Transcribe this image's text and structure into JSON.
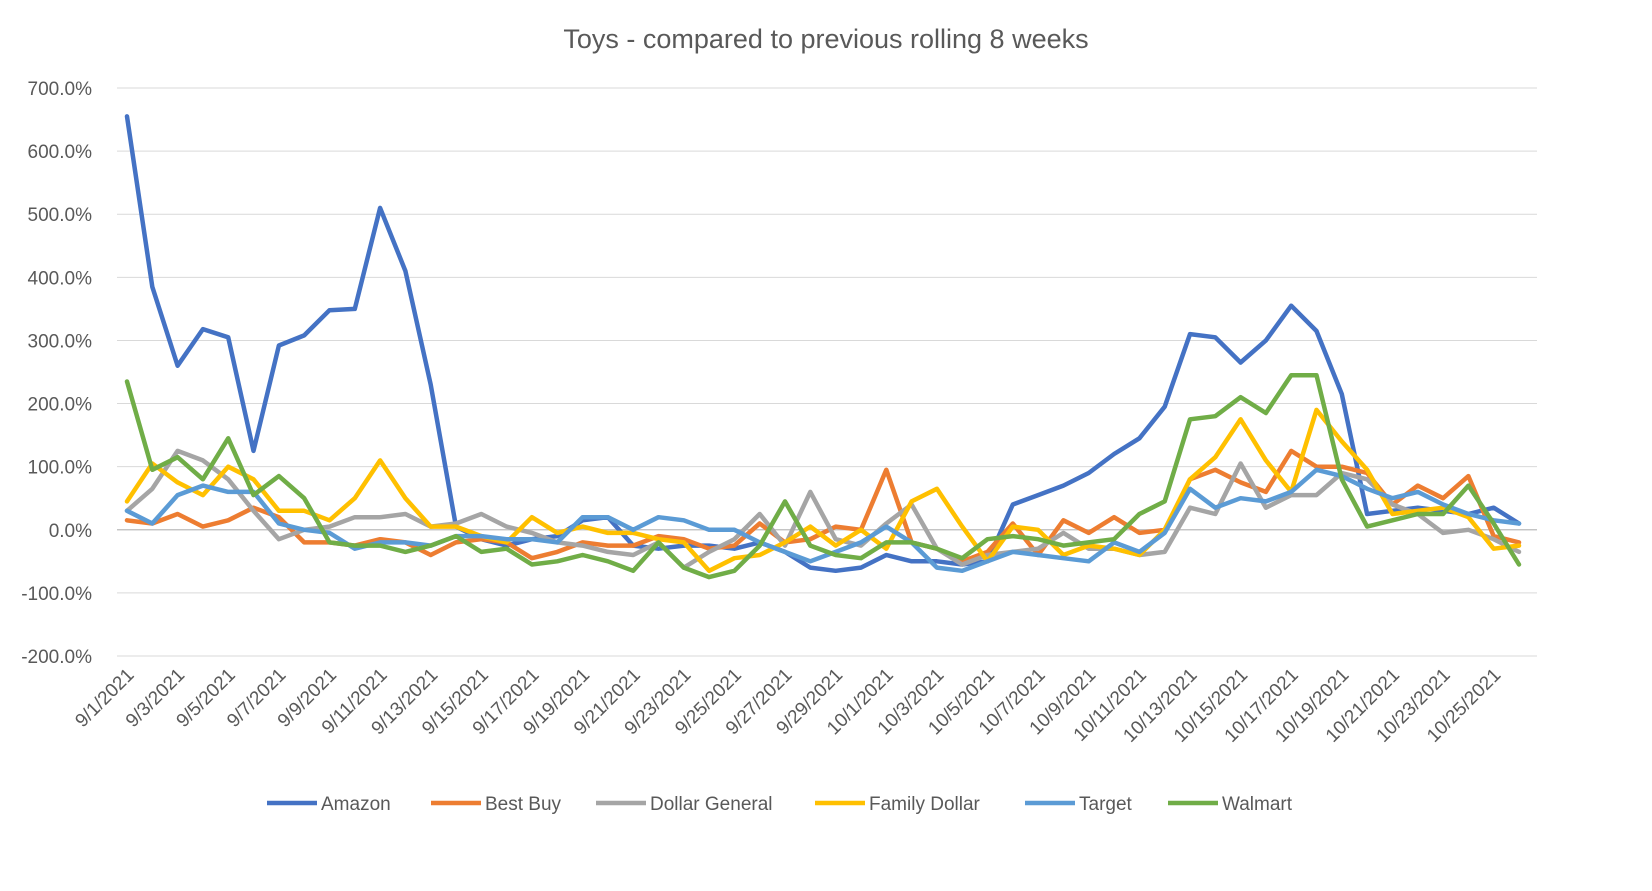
{
  "chart_data": {
    "type": "line",
    "title": "Toys - compared to previous rolling 8 weeks",
    "xlabel": "",
    "ylabel": "",
    "ylim": [
      -200,
      700
    ],
    "yticks": [
      -200,
      -100,
      0,
      100,
      200,
      300,
      400,
      500,
      600,
      700
    ],
    "ytick_labels": [
      "-200.0%",
      "-100.0%",
      "0.0%",
      "100.0%",
      "200.0%",
      "300.0%",
      "400.0%",
      "500.0%",
      "600.0%",
      "700.0%"
    ],
    "grid": true,
    "legend_position": "bottom",
    "categories": [
      "9/1/2021",
      "9/2/2021",
      "9/3/2021",
      "9/4/2021",
      "9/5/2021",
      "9/6/2021",
      "9/7/2021",
      "9/8/2021",
      "9/9/2021",
      "9/10/2021",
      "9/11/2021",
      "9/12/2021",
      "9/13/2021",
      "9/14/2021",
      "9/15/2021",
      "9/16/2021",
      "9/17/2021",
      "9/18/2021",
      "9/19/2021",
      "9/20/2021",
      "9/21/2021",
      "9/22/2021",
      "9/23/2021",
      "9/24/2021",
      "9/25/2021",
      "9/26/2021",
      "9/27/2021",
      "9/28/2021",
      "9/29/2021",
      "9/30/2021",
      "10/1/2021",
      "10/2/2021",
      "10/3/2021",
      "10/4/2021",
      "10/5/2021",
      "10/6/2021",
      "10/7/2021",
      "10/8/2021",
      "10/9/2021",
      "10/10/2021",
      "10/11/2021",
      "10/12/2021",
      "10/13/2021",
      "10/14/2021",
      "10/15/2021",
      "10/16/2021",
      "10/17/2021",
      "10/18/2021",
      "10/19/2021",
      "10/20/2021",
      "10/21/2021",
      "10/22/2021",
      "10/23/2021",
      "10/24/2021",
      "10/25/2021",
      "10/26/2021"
    ],
    "x_tick_labels": [
      "9/1/2021",
      "9/3/2021",
      "9/5/2021",
      "9/7/2021",
      "9/9/2021",
      "9/11/2021",
      "9/13/2021",
      "9/15/2021",
      "9/17/2021",
      "9/19/2021",
      "9/21/2021",
      "9/23/2021",
      "9/25/2021",
      "9/27/2021",
      "9/29/2021",
      "10/1/2021",
      "10/3/2021",
      "10/5/2021",
      "10/7/2021",
      "10/9/2021",
      "10/11/2021",
      "10/13/2021",
      "10/15/2021",
      "10/17/2021",
      "10/19/2021",
      "10/21/2021",
      "10/23/2021",
      "10/25/2021"
    ],
    "series": [
      {
        "name": "Amazon",
        "color": "#4472C4",
        "values": [
          655,
          385,
          260,
          318,
          305,
          125,
          292,
          308,
          348,
          350,
          510,
          410,
          230,
          5,
          -15,
          -25,
          -15,
          -10,
          15,
          20,
          -25,
          -30,
          -25,
          -25,
          -30,
          -20,
          -35,
          -60,
          -65,
          -60,
          -40,
          -50,
          -50,
          -55,
          -50,
          40,
          55,
          70,
          90,
          120,
          145,
          195,
          310,
          305,
          265,
          300,
          355,
          315,
          215,
          25,
          30,
          35,
          30,
          25,
          35,
          10
        ]
      },
      {
        "name": "Best Buy",
        "color": "#ED7D31",
        "values": [
          15,
          10,
          25,
          5,
          15,
          35,
          20,
          -20,
          -20,
          -25,
          -15,
          -20,
          -40,
          -20,
          -15,
          -20,
          -45,
          -35,
          -20,
          -25,
          -25,
          -10,
          -15,
          -30,
          -25,
          10,
          -20,
          -15,
          5,
          0,
          95,
          -20,
          -30,
          -50,
          -35,
          10,
          -40,
          15,
          -5,
          20,
          -5,
          0,
          80,
          95,
          75,
          60,
          125,
          100,
          100,
          90,
          40,
          70,
          50,
          85,
          -10,
          -20
        ]
      },
      {
        "name": "Dollar General",
        "color": "#A5A5A5",
        "values": [
          30,
          65,
          125,
          110,
          80,
          30,
          -15,
          0,
          5,
          20,
          20,
          25,
          5,
          10,
          25,
          5,
          -5,
          -20,
          -25,
          -35,
          -40,
          -20,
          -60,
          -35,
          -15,
          25,
          -25,
          60,
          -15,
          -25,
          10,
          40,
          -30,
          -55,
          -40,
          -35,
          -30,
          -5,
          -30,
          -30,
          -40,
          -35,
          35,
          25,
          105,
          35,
          55,
          55,
          90,
          80,
          40,
          25,
          -5,
          0,
          -15,
          -35
        ]
      },
      {
        "name": "Family Dollar",
        "color": "#FFC000",
        "values": [
          45,
          105,
          75,
          55,
          100,
          80,
          30,
          30,
          15,
          50,
          110,
          50,
          5,
          5,
          -10,
          -20,
          20,
          -5,
          5,
          -5,
          -5,
          -15,
          -20,
          -65,
          -45,
          -40,
          -20,
          5,
          -25,
          0,
          -30,
          45,
          65,
          5,
          -50,
          5,
          0,
          -40,
          -25,
          -30,
          -40,
          0,
          80,
          115,
          175,
          110,
          60,
          190,
          140,
          95,
          25,
          30,
          35,
          20,
          -30,
          -25
        ]
      },
      {
        "name": "Target",
        "color": "#5B9BD5",
        "values": [
          30,
          10,
          55,
          70,
          60,
          60,
          10,
          0,
          -5,
          -30,
          -20,
          -20,
          -25,
          -10,
          -10,
          -15,
          -15,
          -20,
          20,
          20,
          0,
          20,
          15,
          0,
          0,
          -20,
          -35,
          -50,
          -35,
          -20,
          5,
          -20,
          -60,
          -65,
          -50,
          -35,
          -40,
          -45,
          -50,
          -20,
          -35,
          -5,
          65,
          35,
          50,
          45,
          60,
          95,
          85,
          65,
          50,
          60,
          40,
          25,
          15,
          10
        ]
      },
      {
        "name": "Walmart",
        "color": "#70AD47",
        "values": [
          235,
          95,
          115,
          80,
          145,
          55,
          85,
          50,
          -20,
          -25,
          -25,
          -35,
          -25,
          -10,
          -35,
          -30,
          -55,
          -50,
          -40,
          -50,
          -65,
          -20,
          -60,
          -75,
          -65,
          -25,
          45,
          -25,
          -40,
          -45,
          -20,
          -20,
          -30,
          -45,
          -15,
          -10,
          -15,
          -25,
          -20,
          -15,
          25,
          45,
          175,
          180,
          210,
          185,
          245,
          245,
          80,
          5,
          15,
          25,
          25,
          70,
          10,
          -55
        ]
      }
    ]
  }
}
